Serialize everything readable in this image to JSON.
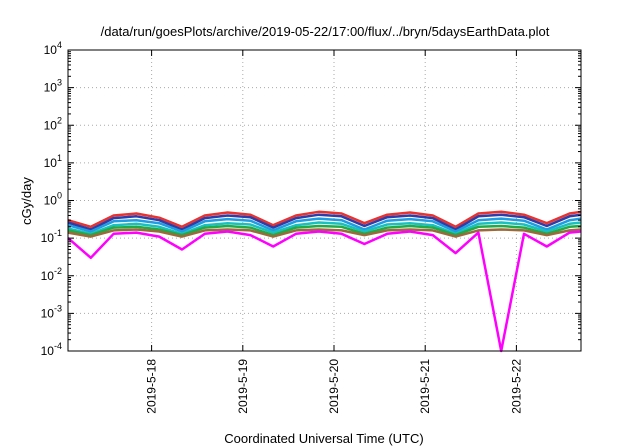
{
  "chart_data": {
    "type": "line",
    "title": "/data/run/goesPlots/archive/2019-05-22/17:00/flux/../bryn/5daysEarthData.plot",
    "xlabel": "Coordinated Universal Time (UTC)",
    "ylabel": "cGy/day",
    "yscale": "log",
    "ylim": [
      0.0001,
      10000
    ],
    "xlim": [
      "2019-05-17 02:00",
      "2019-05-22 17:00"
    ],
    "grid": true,
    "x_ticks": [
      {
        "label": "2019-5-18",
        "x": "2019-05-18"
      },
      {
        "label": "2019-5-19",
        "x": "2019-05-19"
      },
      {
        "label": "2019-5-20",
        "x": "2019-05-20"
      },
      {
        "label": "2019-5-21",
        "x": "2019-05-21"
      },
      {
        "label": "2019-5-22",
        "x": "2019-05-22"
      }
    ],
    "y_ticks": [
      {
        "mant": "10",
        "exp": "-4",
        "value": 0.0001
      },
      {
        "mant": "10",
        "exp": "-3",
        "value": 0.001
      },
      {
        "mant": "10",
        "exp": "-2",
        "value": 0.01
      },
      {
        "mant": "10",
        "exp": "-1",
        "value": 0.1
      },
      {
        "mant": "10",
        "exp": "0",
        "value": 1
      },
      {
        "mant": "10",
        "exp": "1",
        "value": 10
      },
      {
        "mant": "10",
        "exp": "2",
        "value": 100
      },
      {
        "mant": "10",
        "exp": "3",
        "value": 1000
      },
      {
        "mant": "10",
        "exp": "4",
        "value": 10000
      }
    ],
    "x": [
      "2019-05-17 02:00",
      "2019-05-17 08:00",
      "2019-05-17 14:00",
      "2019-05-17 20:00",
      "2019-05-18 02:00",
      "2019-05-18 08:00",
      "2019-05-18 14:00",
      "2019-05-18 20:00",
      "2019-05-19 02:00",
      "2019-05-19 08:00",
      "2019-05-19 14:00",
      "2019-05-19 20:00",
      "2019-05-20 02:00",
      "2019-05-20 08:00",
      "2019-05-20 14:00",
      "2019-05-20 20:00",
      "2019-05-21 02:00",
      "2019-05-21 08:00",
      "2019-05-21 14:00",
      "2019-05-21 20:00",
      "2019-05-22 02:00",
      "2019-05-22 08:00",
      "2019-05-22 14:00",
      "2019-05-22 17:00"
    ],
    "series": [
      {
        "color": "#e8322f",
        "values": [
          0.3,
          0.2,
          0.4,
          0.45,
          0.35,
          0.2,
          0.4,
          0.48,
          0.42,
          0.22,
          0.4,
          0.5,
          0.45,
          0.25,
          0.42,
          0.48,
          0.4,
          0.2,
          0.45,
          0.5,
          0.42,
          0.25,
          0.45,
          0.5
        ]
      },
      {
        "color": "#2e3da8",
        "values": [
          0.26,
          0.17,
          0.34,
          0.38,
          0.3,
          0.17,
          0.34,
          0.4,
          0.36,
          0.19,
          0.34,
          0.42,
          0.38,
          0.21,
          0.36,
          0.4,
          0.34,
          0.17,
          0.38,
          0.42,
          0.36,
          0.21,
          0.38,
          0.42
        ]
      },
      {
        "color": "#1f9de0",
        "values": [
          0.22,
          0.15,
          0.28,
          0.3,
          0.25,
          0.15,
          0.28,
          0.32,
          0.29,
          0.16,
          0.28,
          0.33,
          0.3,
          0.17,
          0.29,
          0.32,
          0.28,
          0.15,
          0.3,
          0.33,
          0.29,
          0.17,
          0.3,
          0.33
        ]
      },
      {
        "color": "#19c0c0",
        "values": [
          0.18,
          0.13,
          0.22,
          0.24,
          0.2,
          0.13,
          0.22,
          0.25,
          0.23,
          0.14,
          0.22,
          0.26,
          0.24,
          0.15,
          0.23,
          0.25,
          0.22,
          0.13,
          0.24,
          0.26,
          0.23,
          0.15,
          0.24,
          0.26
        ]
      },
      {
        "color": "#22aa44",
        "values": [
          0.16,
          0.12,
          0.19,
          0.2,
          0.17,
          0.12,
          0.19,
          0.21,
          0.19,
          0.12,
          0.19,
          0.21,
          0.2,
          0.13,
          0.19,
          0.21,
          0.19,
          0.12,
          0.2,
          0.21,
          0.19,
          0.13,
          0.2,
          0.21
        ]
      },
      {
        "color": "#9a6a3a",
        "values": [
          0.14,
          0.11,
          0.16,
          0.17,
          0.15,
          0.11,
          0.16,
          0.17,
          0.16,
          0.11,
          0.16,
          0.17,
          0.16,
          0.12,
          0.16,
          0.17,
          0.16,
          0.11,
          0.16,
          0.17,
          0.16,
          0.12,
          0.16,
          0.17
        ]
      },
      {
        "color": "#ff00ff",
        "values": [
          0.1,
          0.03,
          0.13,
          0.14,
          0.11,
          0.05,
          0.13,
          0.15,
          0.12,
          0.06,
          0.13,
          0.15,
          0.13,
          0.07,
          0.13,
          0.15,
          0.12,
          0.04,
          0.14,
          0.0001,
          0.13,
          0.06,
          0.14,
          0.15
        ]
      }
    ]
  }
}
